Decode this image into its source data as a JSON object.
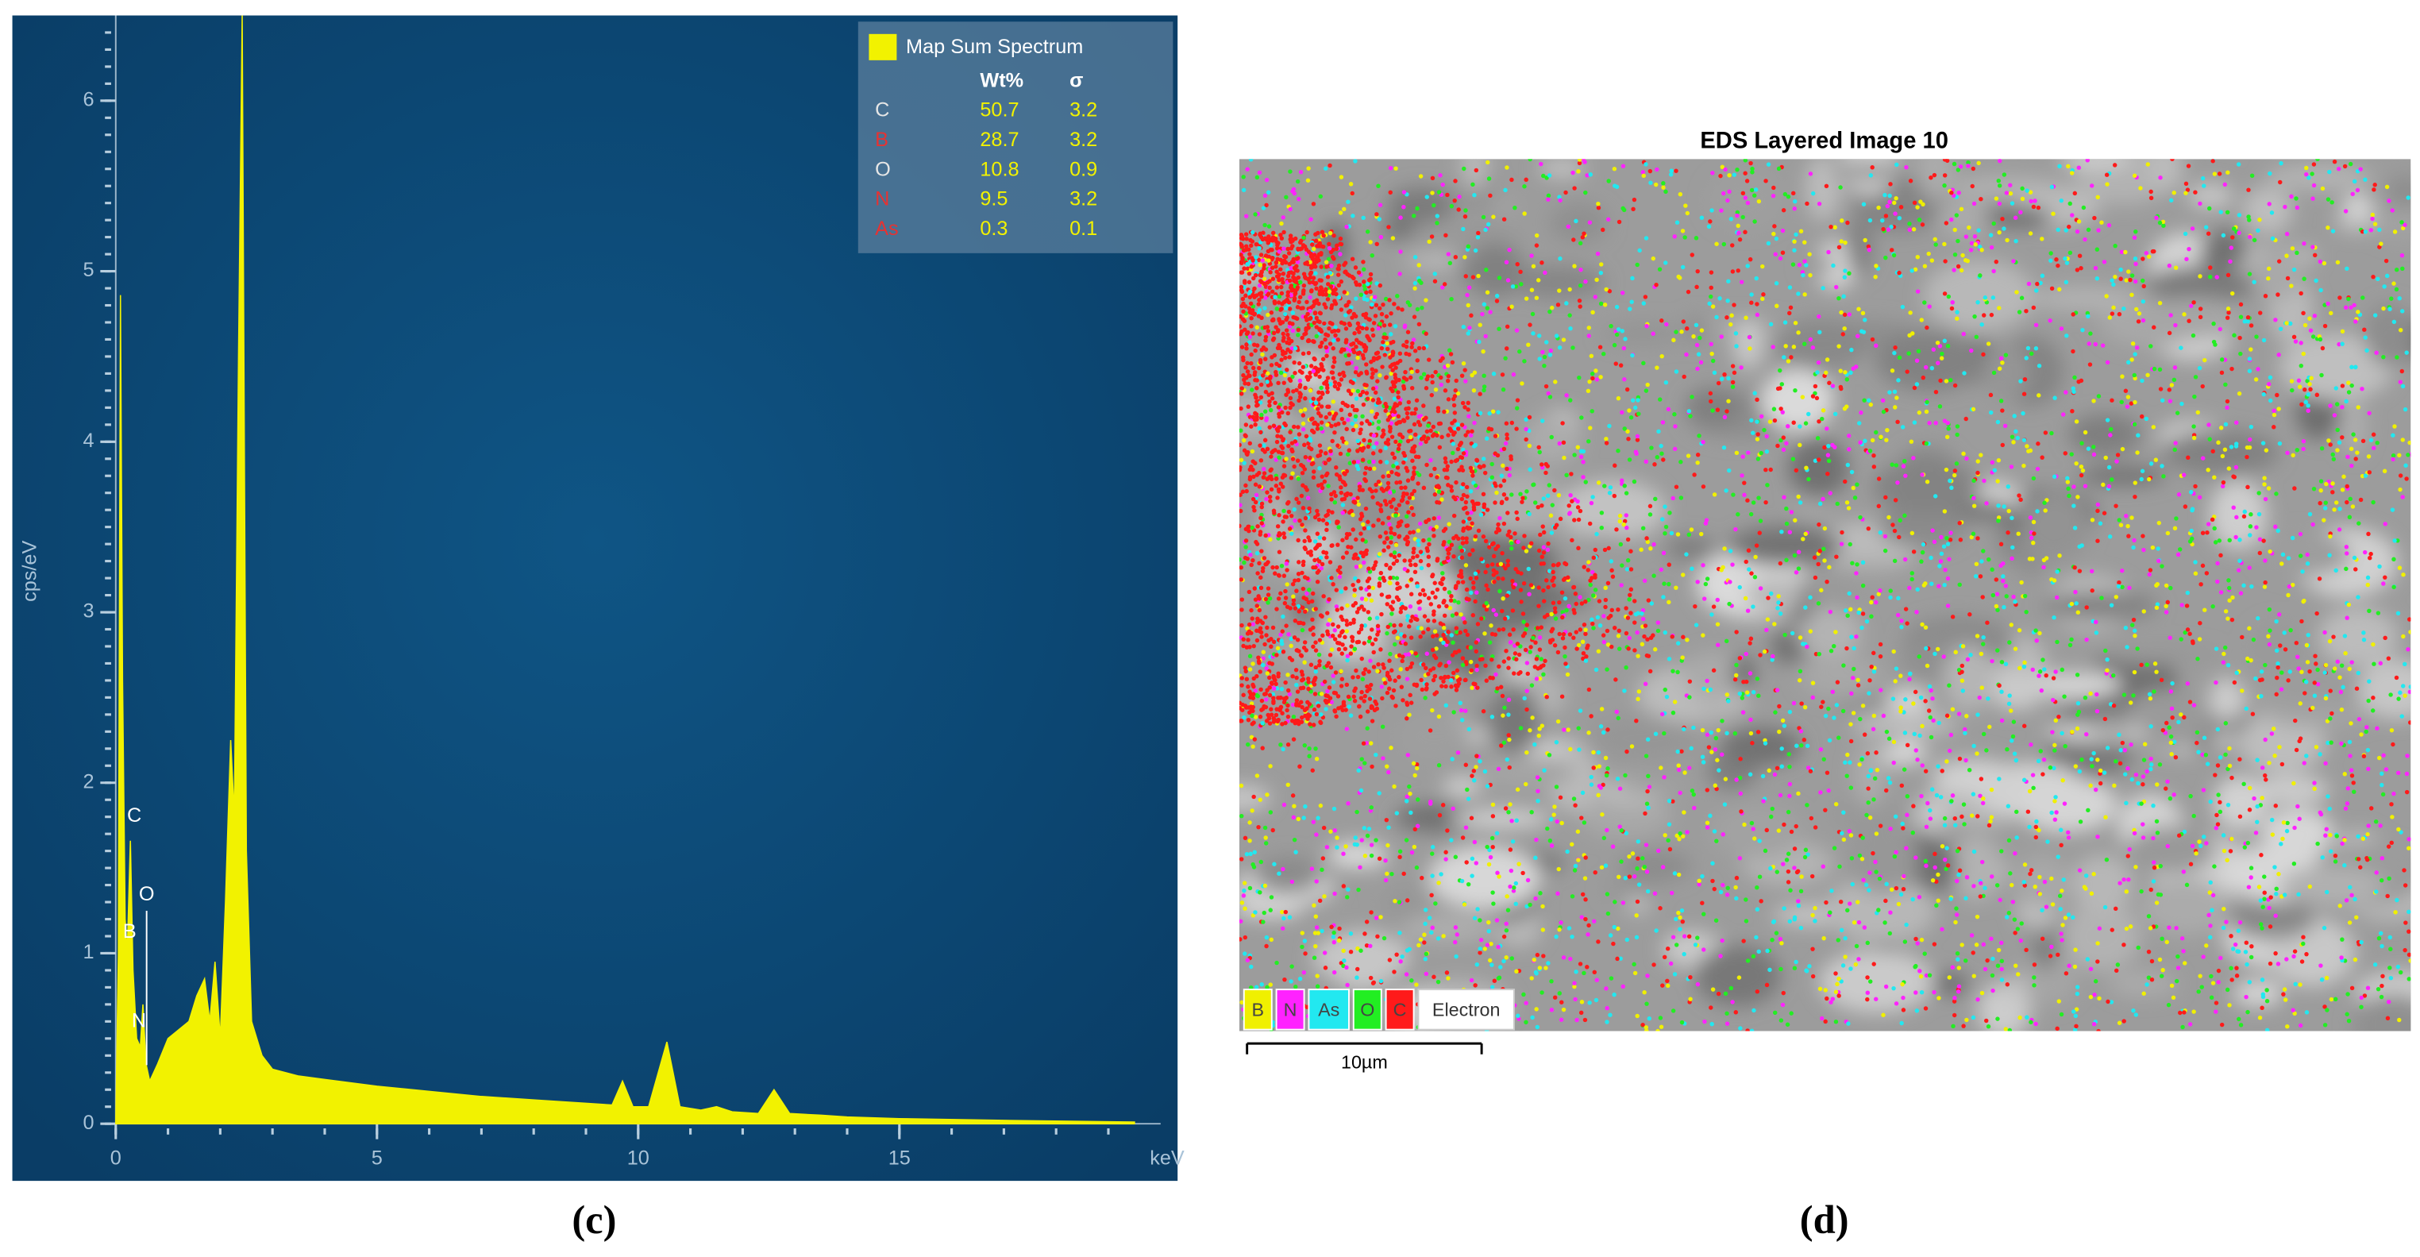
{
  "chart_data": {
    "type": "area",
    "y_label": "cps/eV",
    "x_label": "keV",
    "x": [
      0,
      0.05,
      0.09,
      0.13,
      0.18,
      0.22,
      0.28,
      0.33,
      0.4,
      0.47,
      0.52,
      0.58,
      0.65,
      0.8,
      1.0,
      1.2,
      1.4,
      1.55,
      1.7,
      1.8,
      1.9,
      2.0,
      2.1,
      2.2,
      2.27,
      2.35,
      2.42,
      2.5,
      2.6,
      2.8,
      3.0,
      3.5,
      4,
      5,
      6,
      7,
      8,
      9,
      9.5,
      9.7,
      9.9,
      10.2,
      10.55,
      10.8,
      11.2,
      11.5,
      11.8,
      12.3,
      12.6,
      12.9,
      13.5,
      14,
      15,
      17,
      19.5
    ],
    "series": [
      {
        "name": "Map Sum Spectrum",
        "color": "#f2f200",
        "values": [
          0,
          1.0,
          4.86,
          2.6,
          1.2,
          1.0,
          1.66,
          0.9,
          0.5,
          0.45,
          0.7,
          0.35,
          0.25,
          0.35,
          0.5,
          0.55,
          0.6,
          0.75,
          0.85,
          0.6,
          0.95,
          0.5,
          1.3,
          2.25,
          1.8,
          4.5,
          6.5,
          1.6,
          0.6,
          0.4,
          0.32,
          0.28,
          0.26,
          0.22,
          0.19,
          0.16,
          0.14,
          0.12,
          0.11,
          0.25,
          0.1,
          0.1,
          0.48,
          0.1,
          0.08,
          0.1,
          0.07,
          0.06,
          0.2,
          0.06,
          0.05,
          0.04,
          0.03,
          0.02,
          0.01
        ]
      }
    ],
    "annotations": [
      "C",
      "B",
      "O",
      "N"
    ],
    "xlim": [
      0,
      20
    ],
    "ylim": [
      0,
      6.5
    ],
    "xticks": [
      0,
      5,
      10,
      15
    ],
    "yticks": [
      0,
      1,
      2,
      3,
      4,
      5,
      6
    ],
    "quant_table": {
      "columns": [
        "Wt%",
        "σ"
      ],
      "rows": [
        {
          "element": "C",
          "color": "#e6e6e6",
          "values": [
            "50.7",
            "3.2"
          ]
        },
        {
          "element": "B",
          "color": "#e53333",
          "values": [
            "28.7",
            "3.2"
          ]
        },
        {
          "element": "O",
          "color": "#e6e6e6",
          "values": [
            "10.8",
            "0.9"
          ]
        },
        {
          "element": "N",
          "color": "#e53333",
          "values": [
            "9.5",
            "3.2"
          ]
        },
        {
          "element": "As",
          "color": "#e53333",
          "values": [
            "0.3",
            "0.1"
          ]
        }
      ]
    },
    "caption": "(c)"
  },
  "eds_image": {
    "title": "EDS Layered Image 10",
    "layers": [
      {
        "label": "B",
        "color": "#f0f000"
      },
      {
        "label": "N",
        "color": "#ff22ff"
      },
      {
        "label": "As",
        "color": "#22e8f0"
      },
      {
        "label": "O",
        "color": "#22ee22"
      },
      {
        "label": "C",
        "color": "#ff1a1a"
      }
    ],
    "base_layer": "Electron",
    "scale_bar": "10µm",
    "caption": "(d)"
  }
}
